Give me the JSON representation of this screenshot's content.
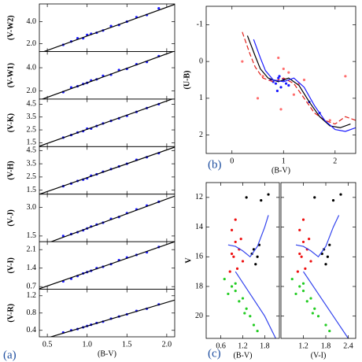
{
  "chart_data": [
    {
      "type": "scatter",
      "ylabel": "(V-W2)",
      "ylim": [
        1.3,
        5.6
      ],
      "yticks": [
        {
          "value": 2.0,
          "label": "2.0"
        },
        {
          "value": 4.0,
          "label": "4.0"
        }
      ],
      "series": [
        {
          "type": "scatter",
          "color": "#1a1aff",
          "x": [
            0.7,
            0.8,
            0.88,
            0.95,
            1.0,
            1.05,
            1.12,
            1.2,
            1.3,
            1.4,
            1.5,
            1.62,
            1.75,
            1.9
          ],
          "values": [
            1.9,
            2.2,
            2.5,
            2.5,
            2.8,
            2.9,
            3.0,
            3.2,
            3.6,
            3.7,
            4.0,
            4.4,
            4.6,
            5.2
          ]
        },
        {
          "type": "line",
          "color": "#000000",
          "x": [
            0.4,
            2.1
          ],
          "values": [
            1.14,
            5.56
          ]
        }
      ]
    },
    {
      "type": "scatter",
      "ylabel": "(V-W1)",
      "ylim": [
        1.3,
        5.4
      ],
      "yticks": [
        {
          "value": 2.0,
          "label": "2.0"
        },
        {
          "value": 4.0,
          "label": "4.0"
        }
      ],
      "series": [
        {
          "type": "scatter",
          "color": "#1a1aff",
          "x": [
            0.7,
            0.8,
            0.88,
            0.95,
            1.0,
            1.05,
            1.12,
            1.2,
            1.3,
            1.4,
            1.5,
            1.62,
            1.75,
            1.9
          ],
          "values": [
            1.9,
            2.3,
            2.4,
            2.6,
            2.7,
            2.9,
            3.0,
            3.3,
            3.4,
            3.8,
            3.9,
            4.3,
            4.5,
            5.0
          ]
        },
        {
          "type": "line",
          "color": "#000000",
          "x": [
            0.4,
            2.1
          ],
          "values": [
            1.2,
            5.45
          ]
        }
      ]
    },
    {
      "type": "scatter",
      "ylabel": "(V-K)",
      "ylim": [
        1.2,
        4.9
      ],
      "yticks": [
        1.5,
        2.5,
        3.5,
        4.5
      ],
      "series": [
        {
          "type": "scatter",
          "color": "#1a1aff",
          "x": [
            0.7,
            0.8,
            0.88,
            0.95,
            1.0,
            1.05,
            1.12,
            1.2,
            1.3,
            1.4,
            1.5,
            1.62,
            1.75,
            1.9
          ],
          "values": [
            1.9,
            2.1,
            2.3,
            2.4,
            2.6,
            2.6,
            2.8,
            3.0,
            3.2,
            3.4,
            3.6,
            3.9,
            4.2,
            4.5
          ]
        },
        {
          "type": "line",
          "color": "#000000",
          "x": [
            0.4,
            2.1
          ],
          "values": [
            1.23,
            4.97
          ]
        }
      ]
    },
    {
      "type": "scatter",
      "ylabel": "(V-H)",
      "ylim": [
        1.2,
        4.8
      ],
      "yticks": [
        1.5,
        2.5,
        3.5,
        4.5
      ],
      "series": [
        {
          "type": "scatter",
          "color": "#1a1aff",
          "x": [
            0.7,
            0.8,
            0.88,
            0.95,
            1.0,
            1.05,
            1.12,
            1.2,
            1.3,
            1.4,
            1.5,
            1.62,
            1.75,
            1.9
          ],
          "values": [
            1.8,
            2.0,
            2.2,
            2.3,
            2.4,
            2.6,
            2.7,
            2.9,
            3.1,
            3.3,
            3.5,
            3.8,
            4.0,
            4.3
          ]
        },
        {
          "type": "line",
          "color": "#000000",
          "x": [
            0.4,
            2.1
          ],
          "values": [
            1.19,
            4.76
          ]
        }
      ]
    },
    {
      "type": "scatter",
      "ylabel": "(V-J)",
      "ylim": [
        1.2,
        3.7
      ],
      "yticks": [
        1.5,
        {
          "value": 3.0,
          "label": "3.0"
        }
      ],
      "series": [
        {
          "type": "scatter",
          "color": "#1a1aff",
          "x": [
            0.7,
            0.8,
            0.88,
            0.95,
            1.0,
            1.05,
            1.12,
            1.2,
            1.3,
            1.4,
            1.5,
            1.62,
            1.75,
            1.9
          ],
          "values": [
            1.5,
            1.6,
            1.7,
            1.8,
            1.9,
            2.0,
            2.1,
            2.2,
            2.4,
            2.5,
            2.7,
            2.9,
            3.1,
            3.3
          ]
        },
        {
          "type": "line",
          "color": "#000000",
          "x": [
            0.4,
            2.1
          ],
          "values": [
            0.97,
            3.6
          ]
        }
      ]
    },
    {
      "type": "scatter",
      "ylabel": "(V-I)",
      "ylim": [
        0.6,
        2.4
      ],
      "yticks": [
        0.7,
        1.4,
        2.1
      ],
      "series": [
        {
          "type": "scatter",
          "color": "#1a1aff",
          "x": [
            0.7,
            0.8,
            0.88,
            0.95,
            1.0,
            1.05,
            1.12,
            1.2,
            1.3,
            1.4,
            1.5,
            1.62,
            1.75,
            1.9
          ],
          "values": [
            0.9,
            1.0,
            1.1,
            1.2,
            1.25,
            1.3,
            1.4,
            1.45,
            1.55,
            1.7,
            1.8,
            1.9,
            2.0,
            2.2
          ]
        },
        {
          "type": "line",
          "color": "#000000",
          "x": [
            0.4,
            2.1
          ],
          "values": [
            0.62,
            2.4
          ]
        }
      ]
    },
    {
      "type": "scatter",
      "ylabel": "(V-R)",
      "xlabel": "(B-V)",
      "panel_label": "(a)",
      "xlim": [
        0.4,
        2.1
      ],
      "xticks": [
        0.5,
        {
          "value": 1.0,
          "label": "1.0"
        },
        1.5,
        {
          "value": 2.0,
          "label": "2.0"
        }
      ],
      "ylim": [
        0.25,
        1.35
      ],
      "yticks": [
        0.4,
        0.8,
        1.2
      ],
      "series": [
        {
          "type": "scatter",
          "color": "#1a1aff",
          "x": [
            0.7,
            0.8,
            0.88,
            0.95,
            1.0,
            1.05,
            1.12,
            1.2,
            1.3,
            1.4,
            1.5,
            1.62,
            1.75,
            1.9
          ],
          "values": [
            0.35,
            0.4,
            0.43,
            0.47,
            0.5,
            0.53,
            0.57,
            0.6,
            0.67,
            0.72,
            0.77,
            0.85,
            0.9,
            1.0
          ]
        },
        {
          "type": "line",
          "color": "#000000",
          "x": [
            0.4,
            2.1
          ],
          "values": [
            0.17,
            1.1
          ]
        }
      ]
    },
    {
      "type": "scatter",
      "ylabel": "(U-B)",
      "xlabel": "(B-V)",
      "panel_label": "(b)",
      "xlim": [
        -0.5,
        2.4
      ],
      "xticks": [
        0,
        1,
        2
      ],
      "ylim": [
        2.5,
        -1.5
      ],
      "yticks": [
        -1,
        0,
        1,
        2
      ],
      "series": [
        {
          "type": "scatter",
          "color": "#ff6f6f",
          "x": [
            0.2,
            0.6,
            0.9,
            1.0,
            1.1,
            1.2,
            1.3,
            0.95,
            1.4,
            0.5,
            2.2,
            1.9
          ],
          "values": [
            0.0,
            0.4,
            -0.1,
            0.2,
            0.3,
            0.9,
            0.6,
            1.3,
            0.5,
            1.0,
            0.4,
            1.6
          ]
        },
        {
          "type": "scatter",
          "color": "#1a1aff",
          "x": [
            0.75,
            0.8,
            0.85,
            0.9,
            0.95,
            1.0,
            1.05,
            0.88,
            0.92,
            1.1,
            1.5,
            1.7
          ],
          "values": [
            0.5,
            0.55,
            0.6,
            0.45,
            0.7,
            0.5,
            0.6,
            0.8,
            0.4,
            0.65,
            1.1,
            1.4
          ]
        },
        {
          "type": "line",
          "color": "#e0201a",
          "dashed": true,
          "x": [
            0.2,
            0.35,
            0.45,
            0.6,
            0.8,
            1.0,
            1.2,
            1.4,
            1.6,
            1.8,
            2.0,
            2.2,
            2.4
          ],
          "values": [
            -0.8,
            -0.2,
            0.15,
            0.45,
            0.55,
            0.45,
            0.6,
            1.0,
            1.4,
            1.6,
            1.7,
            1.5,
            1.6
          ]
        },
        {
          "type": "line",
          "color": "#000000",
          "x": [
            0.3,
            0.45,
            0.55,
            0.7,
            0.9,
            1.1,
            1.3,
            1.5,
            1.7,
            1.9,
            2.1,
            2.3
          ],
          "values": [
            -0.7,
            -0.15,
            0.2,
            0.45,
            0.55,
            0.45,
            0.65,
            1.1,
            1.5,
            1.75,
            1.8,
            1.7
          ]
        },
        {
          "type": "line",
          "color": "#1a1aff",
          "x": [
            0.42,
            0.55,
            0.65,
            0.8,
            1.0,
            1.2,
            1.4,
            1.6,
            1.8,
            2.0,
            2.2,
            2.4
          ],
          "values": [
            -0.6,
            -0.1,
            0.25,
            0.5,
            0.55,
            0.45,
            0.7,
            1.2,
            1.6,
            1.85,
            1.9,
            1.8
          ]
        }
      ]
    },
    {
      "type": "scatter",
      "ylabel": "V",
      "xlabel": "(B-V)",
      "panel_label": "(c)",
      "xlim": [
        0.2,
        2.2
      ],
      "xticks": [
        0.6,
        1.2,
        1.8
      ],
      "ylim": [
        21.5,
        11
      ],
      "yticks": [
        12,
        14,
        16,
        18,
        20
      ],
      "series": [
        {
          "type": "scatter",
          "color": "#22cc22",
          "x": [
            0.7,
            0.9,
            1.0,
            1.2,
            1.3,
            1.1,
            0.8,
            1.4,
            1.5,
            1.0,
            1.25,
            1.6
          ],
          "values": [
            17.5,
            18.0,
            18.3,
            18.8,
            19.5,
            19.0,
            18.5,
            20.0,
            20.6,
            17.8,
            19.8,
            21.0
          ]
        },
        {
          "type": "scatter",
          "color": "#ee1111",
          "x": [
            0.9,
            1.0,
            1.1,
            0.95,
            1.2,
            1.05,
            0.85,
            1.15,
            1.0,
            0.9
          ],
          "values": [
            14.2,
            15.0,
            15.5,
            16.0,
            16.3,
            16.8,
            17.0,
            14.8,
            13.5,
            15.8
          ]
        },
        {
          "type": "scatter",
          "color": "#000000",
          "x": [
            1.5,
            1.6,
            1.55,
            1.45,
            1.65,
            1.3,
            1.7,
            1.9
          ],
          "values": [
            15.5,
            16.0,
            16.5,
            15.8,
            15.2,
            12.0,
            12.2,
            11.8
          ]
        },
        {
          "type": "line",
          "color": "#3344ee",
          "x": [
            0.8,
            1.0,
            1.2,
            1.4,
            1.6,
            1.8,
            1.9
          ],
          "values": [
            15.2,
            15.3,
            15.6,
            16.0,
            15.3,
            14.0,
            13.2
          ]
        },
        {
          "type": "line",
          "color": "#3344ee",
          "x": [
            1.0,
            1.4,
            1.8,
            2.1
          ],
          "values": [
            17.0,
            18.5,
            20.0,
            21.5
          ]
        }
      ]
    },
    {
      "type": "scatter",
      "xlabel": "(V-I)",
      "xlim": [
        0.6,
        2.6
      ],
      "xticks": [
        1.2,
        1.8,
        2.4
      ],
      "ylim": [
        21.5,
        11
      ],
      "series": [
        {
          "type": "scatter",
          "color": "#22cc22",
          "x": [
            0.9,
            1.1,
            1.2,
            1.4,
            1.5,
            1.3,
            1.0,
            1.6,
            1.8,
            1.2,
            1.45,
            1.9
          ],
          "values": [
            17.5,
            18.0,
            18.3,
            18.8,
            19.5,
            19.0,
            18.5,
            20.0,
            20.6,
            17.8,
            19.8,
            21.0
          ]
        },
        {
          "type": "scatter",
          "color": "#ee1111",
          "x": [
            1.1,
            1.2,
            1.3,
            1.15,
            1.4,
            1.25,
            1.05,
            1.35,
            1.2,
            1.1
          ],
          "values": [
            14.2,
            15.0,
            15.5,
            16.0,
            16.3,
            16.8,
            17.0,
            14.8,
            13.5,
            15.8
          ]
        },
        {
          "type": "scatter",
          "color": "#000000",
          "x": [
            1.75,
            1.85,
            1.8,
            1.7,
            1.9,
            1.5,
            2.0,
            2.2
          ],
          "values": [
            15.5,
            16.0,
            16.5,
            15.8,
            15.2,
            12.0,
            12.2,
            11.8
          ]
        },
        {
          "type": "line",
          "color": "#3344ee",
          "x": [
            1.0,
            1.2,
            1.4,
            1.6,
            1.8,
            2.0,
            2.15
          ],
          "values": [
            15.2,
            15.3,
            15.6,
            16.0,
            15.3,
            14.0,
            13.2
          ]
        },
        {
          "type": "line",
          "color": "#3344ee",
          "x": [
            1.2,
            1.6,
            2.0,
            2.4
          ],
          "values": [
            17.0,
            18.5,
            20.0,
            21.5
          ]
        }
      ]
    }
  ]
}
